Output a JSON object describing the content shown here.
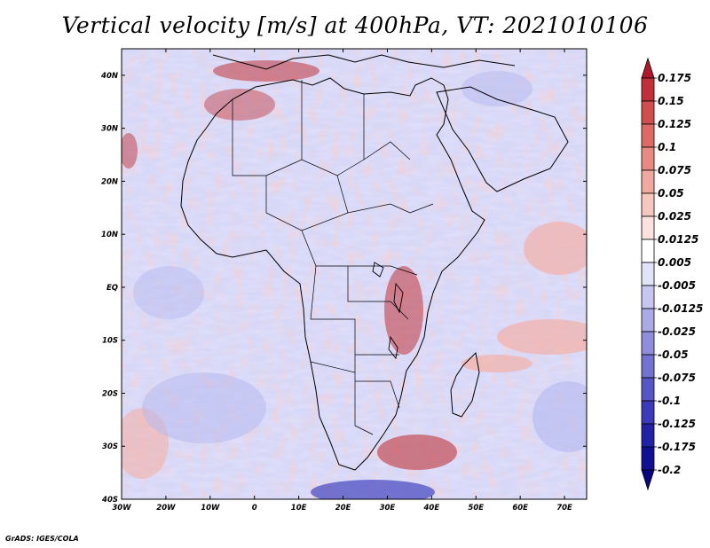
{
  "title": "Vertical velocity [m/s] at 400hPa, VT: 2021010106",
  "credit": "GrADS: IGES/COLA",
  "map": {
    "lat_labels": [
      "40N",
      "30N",
      "20N",
      "10N",
      "EQ",
      "10S",
      "20S",
      "30S",
      "40S"
    ],
    "lon_labels": [
      "30W",
      "20W",
      "10W",
      "0",
      "10E",
      "20E",
      "30E",
      "40E",
      "50E",
      "60E",
      "70E"
    ],
    "lat_range": [
      -40,
      45
    ],
    "lon_range": [
      -30,
      75
    ]
  },
  "colorbar": {
    "levels": [
      "0.175",
      "0.15",
      "0.125",
      "0.1",
      "0.075",
      "0.05",
      "0.025",
      "0.0125",
      "0.005",
      "-0.005",
      "-0.0125",
      "-0.025",
      "-0.05",
      "-0.075",
      "-0.1",
      "-0.125",
      "-0.175",
      "-0.2"
    ],
    "colors": [
      "#b2182b",
      "#c32f38",
      "#d24d4d",
      "#de6a64",
      "#e88a82",
      "#f0a9a0",
      "#f6c7bf",
      "#fbe2dd",
      "#ffffff",
      "#e2e2f8",
      "#c6c6f0",
      "#aaaae6",
      "#8e8edc",
      "#7272d2",
      "#5656c6",
      "#3a3aba",
      "#2222a8",
      "#101096",
      "#060680"
    ]
  },
  "palette": {
    "red_strong": "#c0353a",
    "red_light": "#f4b0a8",
    "blue_light": "#b4b8f0",
    "blue_strong": "#4444bf",
    "coast": "#000000"
  }
}
